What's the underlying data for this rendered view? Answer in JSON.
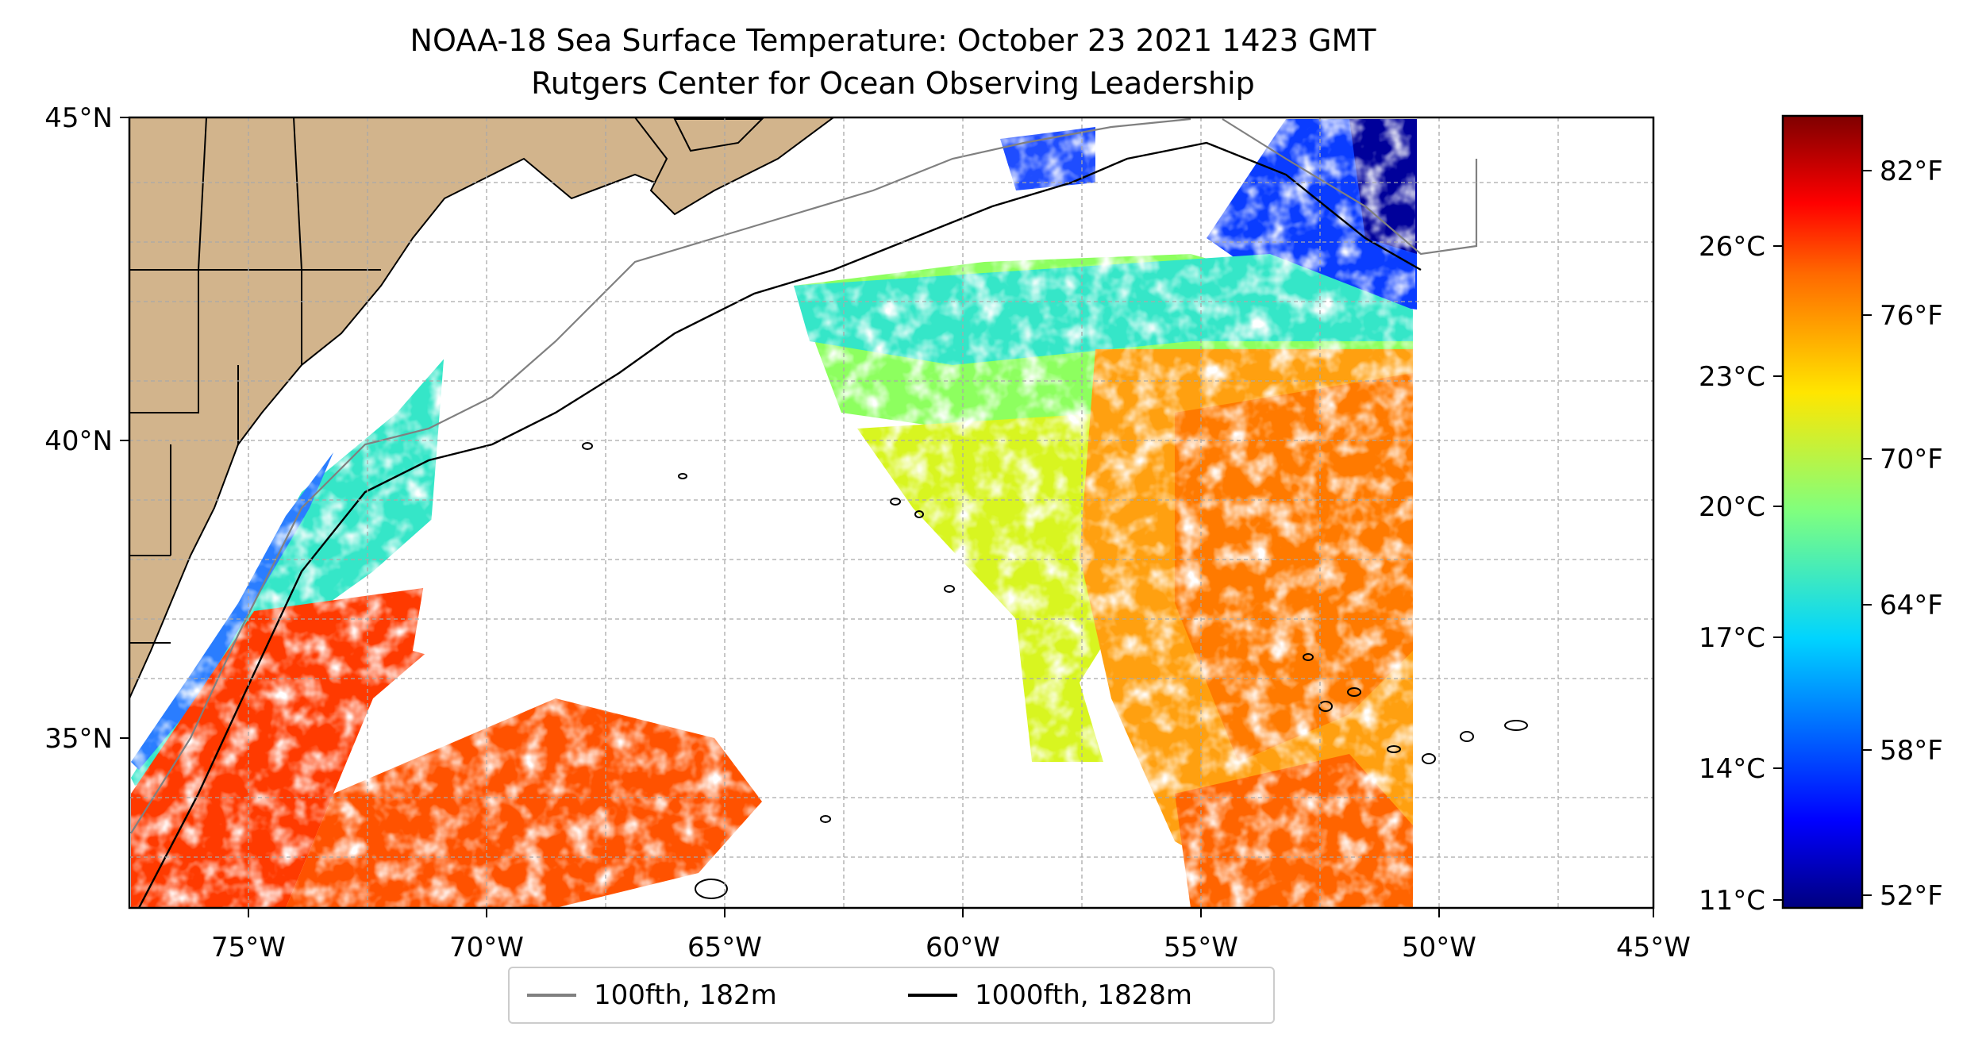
{
  "title": {
    "line1": "NOAA-18 Sea Surface Temperature: October 23 2021 1423 GMT",
    "line2": "Rutgers Center for Ocean Observing Leadership"
  },
  "map": {
    "lon_range": [
      -77,
      -45
    ],
    "lat_range": [
      32.4,
      45
    ],
    "lon_ticks": [
      "75°W",
      "70°W",
      "65°W",
      "60°W",
      "55°W",
      "50°W",
      "45°W"
    ],
    "lat_ticks": [
      "45°N",
      "40°N",
      "35°N"
    ],
    "grid": true,
    "land_color": "#d2b48c",
    "coastline_color": "#000000"
  },
  "colorbar": {
    "colormap": "jet",
    "celsius_ticks": [
      "26°C",
      "23°C",
      "20°C",
      "17°C",
      "14°C",
      "11°C"
    ],
    "fahrenheit_ticks": [
      "82°F",
      "76°F",
      "70°F",
      "64°F",
      "58°F",
      "52°F"
    ]
  },
  "legend": {
    "items": [
      {
        "label": "100fth, 182m",
        "color": "#808080"
      },
      {
        "label": "1000fth, 1828m",
        "color": "#000000"
      }
    ]
  }
}
